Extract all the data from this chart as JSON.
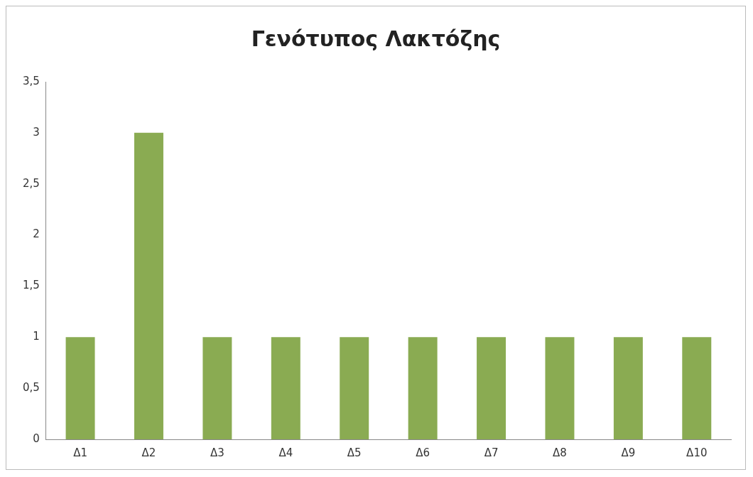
{
  "chart_data": {
    "type": "bar",
    "title": "Γενότυπος Λακτόζης",
    "categories": [
      "Δ1",
      "Δ2",
      "Δ3",
      "Δ4",
      "Δ5",
      "Δ6",
      "Δ7",
      "Δ8",
      "Δ9",
      "Δ10"
    ],
    "values": [
      1,
      3,
      1,
      1,
      1,
      1,
      1,
      1,
      1,
      1
    ],
    "color": "#8aab52",
    "ylim": [
      0,
      3.5
    ],
    "yticks": [
      0,
      {
        "value": 0.5,
        "label": "0,5"
      },
      1,
      {
        "value": 1.5,
        "label": "1,5"
      },
      2,
      {
        "value": 2.5,
        "label": "2,5"
      },
      3,
      {
        "value": 3.5,
        "label": "3,5"
      }
    ],
    "grid": false,
    "legend": false
  }
}
